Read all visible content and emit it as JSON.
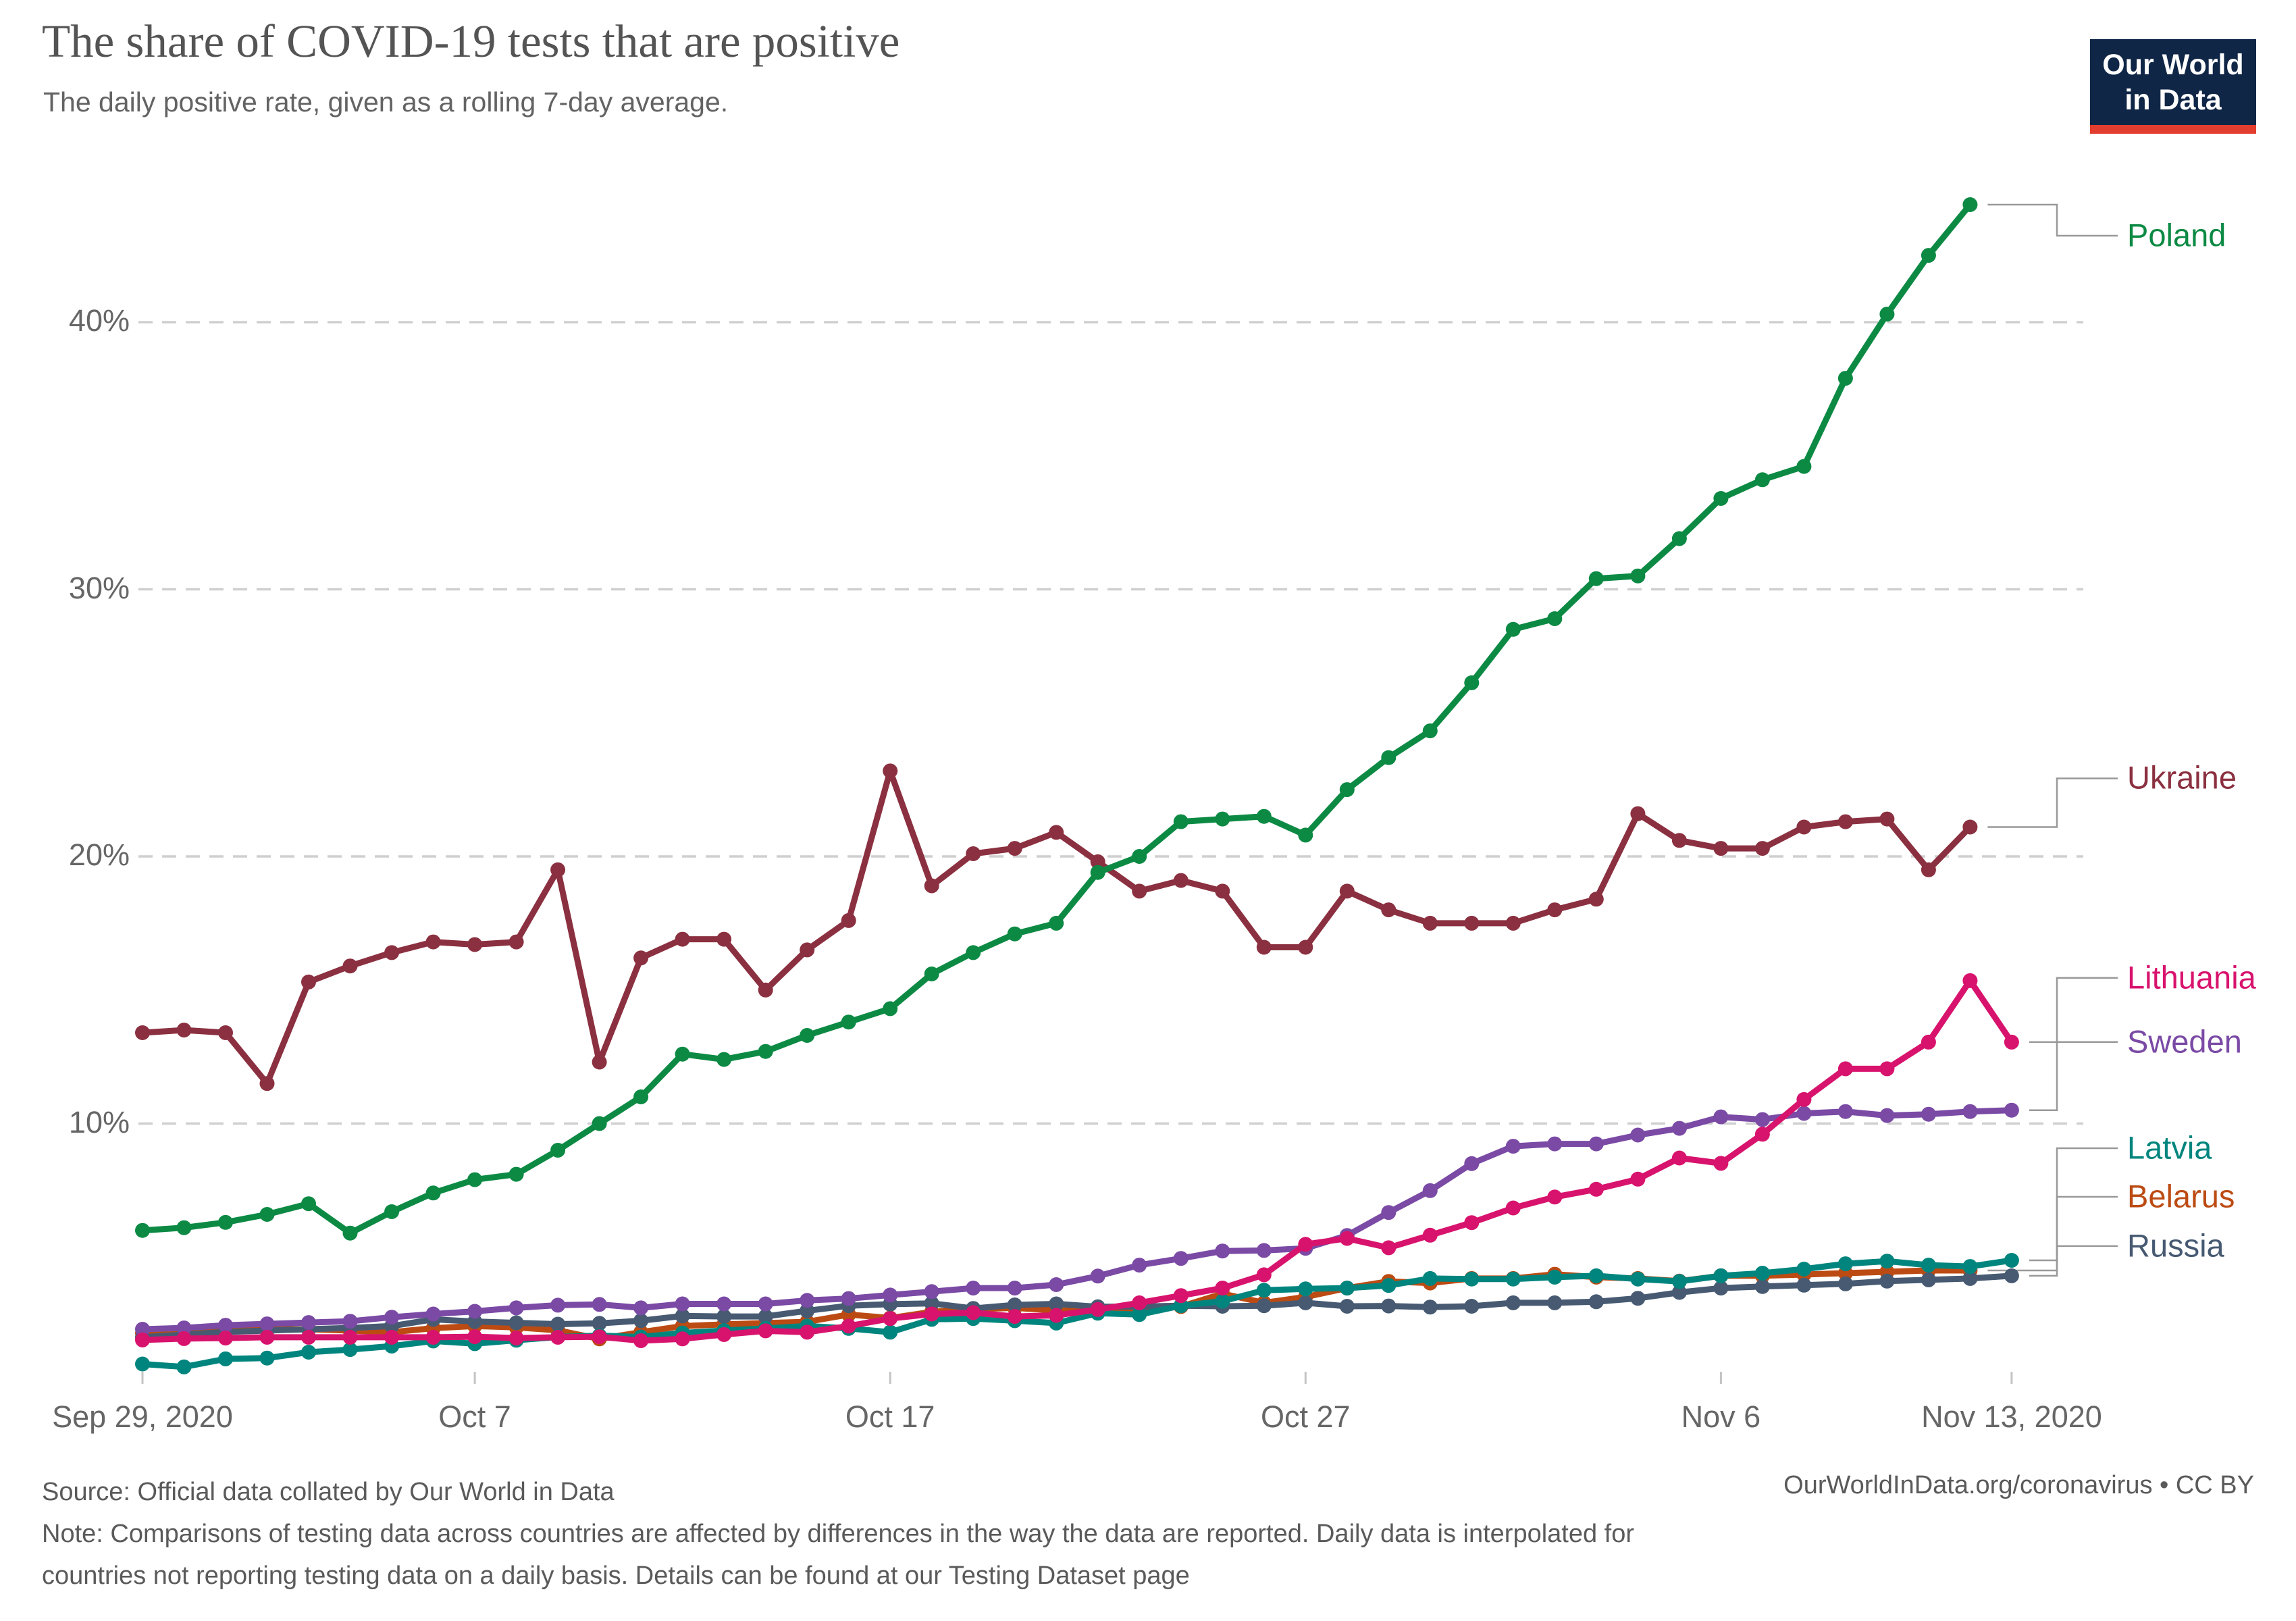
{
  "logo": {
    "line1": "Our World",
    "line2": "in Data",
    "bg_color": "#102647",
    "stripe_color": "#E23D2E"
  },
  "footer": {
    "source": "Source: Official data collated by Our World in Data",
    "note_line1": "Note: Comparisons of testing data across countries are affected by differences in the way the data are reported. Daily data is interpolated for",
    "note_line2": "countries not reporting testing data on a daily basis. Details can be found at our Testing Dataset page",
    "credit": "OurWorldInData.org/coronavirus • CC BY"
  },
  "chart_data": {
    "type": "line",
    "title": "The share of COVID-19 tests that are positive",
    "subtitle": "The daily positive rate, given as a rolling 7-day average.",
    "x_unit": "day",
    "start_date": "2020-09-29",
    "end_date": "2020-11-13",
    "xlim_days": [
      0,
      45
    ],
    "ylim": [
      0,
      46.5
    ],
    "grid": "dashed-horizontal",
    "legend_position": "right-of-lines",
    "grid_color": "#cfcfcf",
    "connector_color": "#999999",
    "y_ticks": [
      {
        "value": 10,
        "label": "10%"
      },
      {
        "value": 20,
        "label": "20%"
      },
      {
        "value": 30,
        "label": "30%"
      },
      {
        "value": 40,
        "label": "40%"
      }
    ],
    "x_ticks": [
      {
        "day": 0,
        "label": "Sep 29, 2020"
      },
      {
        "day": 8,
        "label": "Oct 7"
      },
      {
        "day": 18,
        "label": "Oct 17"
      },
      {
        "day": 28,
        "label": "Oct 27"
      },
      {
        "day": 38,
        "label": "Nov 6"
      },
      {
        "day": 45,
        "label": "Nov 13, 2020"
      }
    ],
    "series": [
      {
        "name": "Belarus",
        "color": "#BC4B13",
        "start_day": 0,
        "label_offset_y": -109,
        "values": [
          2.15,
          2.2,
          2.25,
          2.3,
          2.3,
          2.25,
          2.19,
          2.34,
          2.42,
          2.37,
          2.26,
          1.94,
          2.19,
          2.42,
          2.48,
          2.53,
          2.58,
          2.85,
          2.72,
          2.95,
          3.05,
          3.1,
          3.0,
          3.0,
          3.05,
          3.15,
          3.63,
          3.29,
          3.51,
          3.84,
          4.09,
          4.03,
          4.2,
          4.2,
          4.36,
          4.25,
          4.2,
          4.1,
          4.3,
          4.3,
          4.35,
          4.4,
          4.45,
          4.5,
          4.5
        ]
      },
      {
        "name": "Russia",
        "color": "#475A72",
        "start_day": 0,
        "label_offset_y": -44,
        "values": [
          2.0,
          2.1,
          2.2,
          2.25,
          2.3,
          2.35,
          2.42,
          2.67,
          2.59,
          2.54,
          2.49,
          2.52,
          2.62,
          2.8,
          2.78,
          2.78,
          2.99,
          3.18,
          3.24,
          3.27,
          3.08,
          3.21,
          3.25,
          3.14,
          3.15,
          3.18,
          3.16,
          3.18,
          3.29,
          3.16,
          3.17,
          3.13,
          3.16,
          3.29,
          3.29,
          3.33,
          3.46,
          3.68,
          3.84,
          3.9,
          3.95,
          4.0,
          4.1,
          4.15,
          4.2,
          4.3
        ]
      },
      {
        "name": "Latvia",
        "color": "#00857E",
        "start_day": 0,
        "label_offset_y": -166,
        "values": [
          1.0,
          0.89,
          1.19,
          1.22,
          1.44,
          1.54,
          1.67,
          1.86,
          1.76,
          1.89,
          2.01,
          2.06,
          2.01,
          2.16,
          2.25,
          2.33,
          2.42,
          2.33,
          2.19,
          2.67,
          2.7,
          2.62,
          2.53,
          2.9,
          2.85,
          3.18,
          3.35,
          3.76,
          3.81,
          3.84,
          3.94,
          4.2,
          4.18,
          4.18,
          4.25,
          4.3,
          4.18,
          4.09,
          4.3,
          4.4,
          4.55,
          4.75,
          4.85,
          4.7,
          4.65,
          4.88
        ]
      },
      {
        "name": "Sweden",
        "color": "#7A4AA5",
        "start_day": 0,
        "label_offset_y": -101,
        "values": [
          2.3,
          2.35,
          2.45,
          2.5,
          2.55,
          2.6,
          2.75,
          2.87,
          2.97,
          3.1,
          3.2,
          3.23,
          3.1,
          3.25,
          3.25,
          3.25,
          3.38,
          3.45,
          3.58,
          3.71,
          3.84,
          3.84,
          3.97,
          4.29,
          4.7,
          4.95,
          5.23,
          5.25,
          5.33,
          5.81,
          6.67,
          7.49,
          8.5,
          9.15,
          9.24,
          9.24,
          9.57,
          9.82,
          10.25,
          10.15,
          10.38,
          10.45,
          10.3,
          10.35,
          10.45,
          10.5
        ]
      },
      {
        "name": "Lithuania",
        "color": "#D8136D",
        "start_day": 0,
        "label_offset_y": -95,
        "values": [
          1.9,
          1.95,
          1.97,
          2.0,
          2.0,
          2.0,
          2.0,
          2.0,
          2.02,
          1.97,
          2.0,
          2.02,
          1.87,
          1.94,
          2.1,
          2.24,
          2.19,
          2.42,
          2.7,
          2.87,
          2.92,
          2.78,
          2.82,
          3.04,
          3.29,
          3.56,
          3.84,
          4.34,
          5.48,
          5.7,
          5.35,
          5.82,
          6.29,
          6.84,
          7.25,
          7.54,
          7.92,
          8.71,
          8.51,
          9.6,
          10.9,
          12.05,
          12.05,
          13.05,
          15.35,
          13.05
        ]
      },
      {
        "name": "Ukraine",
        "color": "#8B3040",
        "start_day": 0,
        "label_offset_y": -72,
        "values": [
          13.4,
          13.5,
          13.4,
          11.5,
          15.3,
          15.9,
          16.4,
          16.8,
          16.7,
          16.8,
          19.5,
          12.3,
          16.2,
          16.9,
          16.9,
          15.0,
          16.5,
          17.6,
          23.2,
          18.9,
          20.1,
          20.3,
          20.9,
          19.8,
          18.7,
          19.1,
          18.7,
          16.6,
          16.6,
          18.7,
          18.0,
          17.5,
          17.5,
          17.5,
          18.0,
          18.4,
          21.6,
          20.6,
          20.3,
          20.3,
          21.1,
          21.3,
          21.4,
          19.5,
          21.1
        ]
      },
      {
        "name": "Poland",
        "color": "#0C8A44",
        "start_day": 0,
        "label_offset_y": 46,
        "values": [
          6.0,
          6.1,
          6.3,
          6.6,
          7.0,
          5.9,
          6.7,
          7.4,
          7.9,
          8.1,
          9.0,
          10.0,
          11.0,
          12.6,
          12.4,
          12.7,
          13.3,
          13.8,
          14.3,
          15.6,
          16.4,
          17.1,
          17.5,
          19.4,
          20.0,
          21.3,
          21.4,
          21.5,
          20.8,
          22.5,
          23.7,
          24.7,
          26.5,
          28.5,
          28.9,
          30.4,
          30.5,
          31.9,
          33.4,
          34.1,
          34.6,
          37.9,
          40.3,
          42.5,
          44.4
        ]
      }
    ]
  }
}
